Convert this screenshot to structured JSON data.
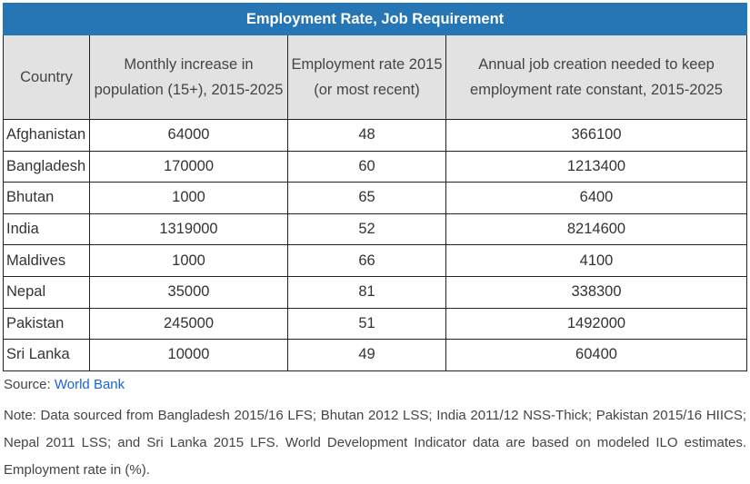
{
  "chart_data": {
    "type": "table",
    "title": "Employment Rate, Job Requirement",
    "columns": [
      "Country",
      "Monthly increase in population (15+), 2015-2025",
      "Employment rate 2015 (or most recent)",
      "Annual job creation needed to keep employment rate constant, 2015-2025"
    ],
    "rows": [
      [
        "Afghanistan",
        "64000",
        "48",
        "366100"
      ],
      [
        "Bangladesh",
        "170000",
        "60",
        "1213400"
      ],
      [
        "Bhutan",
        "1000",
        "65",
        "6400"
      ],
      [
        "India",
        "1319000",
        "52",
        "8214600"
      ],
      [
        "Maldives",
        "1000",
        "66",
        "4100"
      ],
      [
        "Nepal",
        "35000",
        "81",
        "338300"
      ],
      [
        "Pakistan",
        "245000",
        "51",
        "1492000"
      ],
      [
        "Sri Lanka",
        "10000",
        "49",
        "60400"
      ]
    ],
    "colors": {
      "title_bg": "#2675b5",
      "header_bg": "#e2e2e2",
      "link": "#1a66cc"
    }
  },
  "footer": {
    "source_label": "Source: ",
    "source_link": "World Bank",
    "note": "Note: Data sourced from Bangladesh 2015/16 LFS; Bhutan 2012 LSS; India 2011/12 NSS-Thick; Pakistan 2015/16 HIICS; Nepal 2011 LSS; and Sri Lanka 2015 LFS. World Development Indicator data are based on modeled ILO estimates. Employment rate in (%)."
  }
}
